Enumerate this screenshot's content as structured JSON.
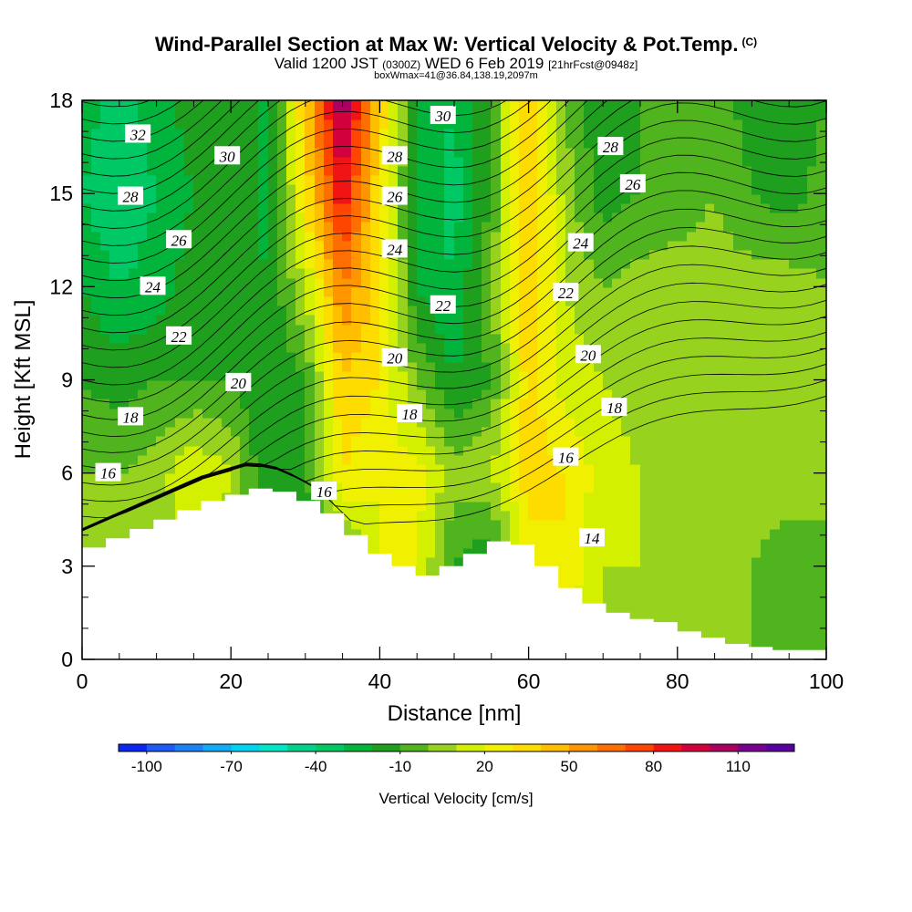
{
  "title": {
    "main": "Wind-Parallel Section at Max W: Vertical Velocity & Pot.Temp.",
    "copyright": "(C)",
    "valid_prefix": "Valid 1200 JST",
    "utc": "(0300Z)",
    "date": "WED 6 Feb 2019",
    "forecast": "[21hrFcst@0948z]",
    "box": "boxWmax=41@36.84,138.19,2097m"
  },
  "chart_data": {
    "type": "heatmap",
    "xlabel": "Distance [nm]",
    "ylabel": "Height [Kft MSL]",
    "xlim": [
      0,
      100
    ],
    "ylim": [
      0,
      18
    ],
    "x_ticks": [
      0,
      20,
      40,
      60,
      80,
      100
    ],
    "y_ticks": [
      0,
      3,
      6,
      9,
      12,
      15,
      18
    ],
    "colorbar": {
      "label": "Vertical Velocity [cm/s]",
      "tick_labels": [
        "-100",
        "-70",
        "-40",
        "-10",
        "20",
        "50",
        "80",
        "110"
      ],
      "levels": [
        -100,
        -90,
        -80,
        -70,
        -60,
        -50,
        -40,
        -30,
        -20,
        -10,
        0,
        10,
        20,
        30,
        40,
        50,
        60,
        70,
        80,
        90,
        100,
        110,
        120
      ],
      "colors": [
        "#0a28f0",
        "#1e5af5",
        "#1e82f5",
        "#14aaf5",
        "#00d2f0",
        "#00e6c8",
        "#00d28c",
        "#00c864",
        "#00b43c",
        "#1ea01e",
        "#50b41e",
        "#96d21e",
        "#d2f000",
        "#f0f000",
        "#ffdc00",
        "#ffbe00",
        "#ff9600",
        "#ff6e00",
        "#ff4600",
        "#f01414",
        "#d2003c",
        "#aa0064",
        "#78008c",
        "#5a00a0"
      ]
    },
    "vertical_velocity_cm_s": {
      "x": [
        0,
        5,
        10,
        15,
        20,
        25,
        30,
        35,
        40,
        45,
        50,
        55,
        60,
        65,
        70,
        75,
        80,
        85,
        90,
        95,
        100
      ],
      "y": [
        0,
        3,
        6,
        9,
        12,
        15,
        18
      ],
      "z": [
        [
          5,
          5,
          5,
          5,
          5,
          5,
          5,
          5,
          8,
          10,
          8,
          5,
          8,
          10,
          5,
          5,
          5,
          0,
          0,
          -10,
          -10
        ],
        [
          0,
          0,
          5,
          10,
          5,
          -10,
          -30,
          -10,
          20,
          20,
          -10,
          -20,
          25,
          30,
          10,
          10,
          5,
          5,
          0,
          -5,
          -5
        ],
        [
          0,
          0,
          5,
          20,
          10,
          -20,
          -10,
          30,
          20,
          25,
          5,
          10,
          35,
          30,
          15,
          10,
          5,
          5,
          5,
          5,
          5
        ],
        [
          -10,
          -15,
          -10,
          -10,
          -10,
          -20,
          -10,
          40,
          30,
          0,
          -20,
          -10,
          35,
          15,
          10,
          5,
          5,
          5,
          5,
          5,
          5
        ],
        [
          -20,
          -30,
          -25,
          -15,
          -10,
          -20,
          10,
          60,
          35,
          -20,
          -30,
          0,
          40,
          10,
          0,
          5,
          5,
          5,
          5,
          5,
          0
        ],
        [
          -30,
          -40,
          -30,
          -20,
          -10,
          -25,
          30,
          90,
          30,
          -20,
          -35,
          -10,
          45,
          5,
          -15,
          -10,
          -5,
          0,
          -10,
          -15,
          -5
        ],
        [
          -25,
          -35,
          -25,
          -15,
          -10,
          -25,
          40,
          110,
          40,
          -20,
          -30,
          -10,
          45,
          0,
          -20,
          -10,
          -5,
          -5,
          -15,
          -20,
          -10
        ]
      ]
    },
    "potential_temperature_contours": {
      "units": "C",
      "labels": [
        {
          "value": "32",
          "x": 7.5,
          "y": 16.9
        },
        {
          "value": "30",
          "x": 19.5,
          "y": 16.2
        },
        {
          "value": "28",
          "x": 6.5,
          "y": 14.9
        },
        {
          "value": "26",
          "x": 13,
          "y": 13.5
        },
        {
          "value": "24",
          "x": 9.5,
          "y": 12.0
        },
        {
          "value": "22",
          "x": 13,
          "y": 10.4
        },
        {
          "value": "20",
          "x": 21,
          "y": 8.9
        },
        {
          "value": "18",
          "x": 6.5,
          "y": 7.8
        },
        {
          "value": "16",
          "x": 3.5,
          "y": 6.0
        },
        {
          "value": "16",
          "x": 32.5,
          "y": 5.4
        },
        {
          "value": "18",
          "x": 44,
          "y": 7.9
        },
        {
          "value": "20",
          "x": 42,
          "y": 9.7
        },
        {
          "value": "22",
          "x": 48.5,
          "y": 11.4
        },
        {
          "value": "24",
          "x": 42,
          "y": 13.2
        },
        {
          "value": "26",
          "x": 42,
          "y": 14.9
        },
        {
          "value": "28",
          "x": 42,
          "y": 16.2
        },
        {
          "value": "30",
          "x": 48.5,
          "y": 17.5
        },
        {
          "value": "28",
          "x": 71,
          "y": 16.5
        },
        {
          "value": "26",
          "x": 74,
          "y": 15.3
        },
        {
          "value": "24",
          "x": 67,
          "y": 13.4
        },
        {
          "value": "22",
          "x": 65,
          "y": 11.8
        },
        {
          "value": "20",
          "x": 68,
          "y": 9.8
        },
        {
          "value": "18",
          "x": 71.5,
          "y": 8.1
        },
        {
          "value": "16",
          "x": 65,
          "y": 6.5
        },
        {
          "value": "14",
          "x": 68.5,
          "y": 3.9
        }
      ]
    },
    "terrain_kft": {
      "x": [
        0,
        3.2,
        6.4,
        9.6,
        12.8,
        16,
        19.2,
        22.4,
        25.6,
        28.8,
        32,
        35.2,
        38.4,
        41.6,
        44.8,
        48,
        51.2,
        54.4,
        57.6,
        60.8,
        64,
        67.2,
        70.4,
        73.6,
        76.8,
        80,
        83.2,
        86.4,
        89.6,
        92.8,
        96,
        100
      ],
      "y": [
        3.6,
        3.9,
        4.2,
        4.5,
        4.8,
        5.1,
        5.3,
        5.5,
        5.4,
        5.1,
        4.7,
        4.0,
        3.4,
        3.0,
        2.7,
        3.0,
        3.4,
        3.8,
        3.7,
        3.0,
        2.3,
        1.8,
        1.5,
        1.3,
        1.2,
        0.9,
        0.7,
        0.5,
        0.4,
        0.3,
        0.3,
        0.3
      ]
    }
  }
}
